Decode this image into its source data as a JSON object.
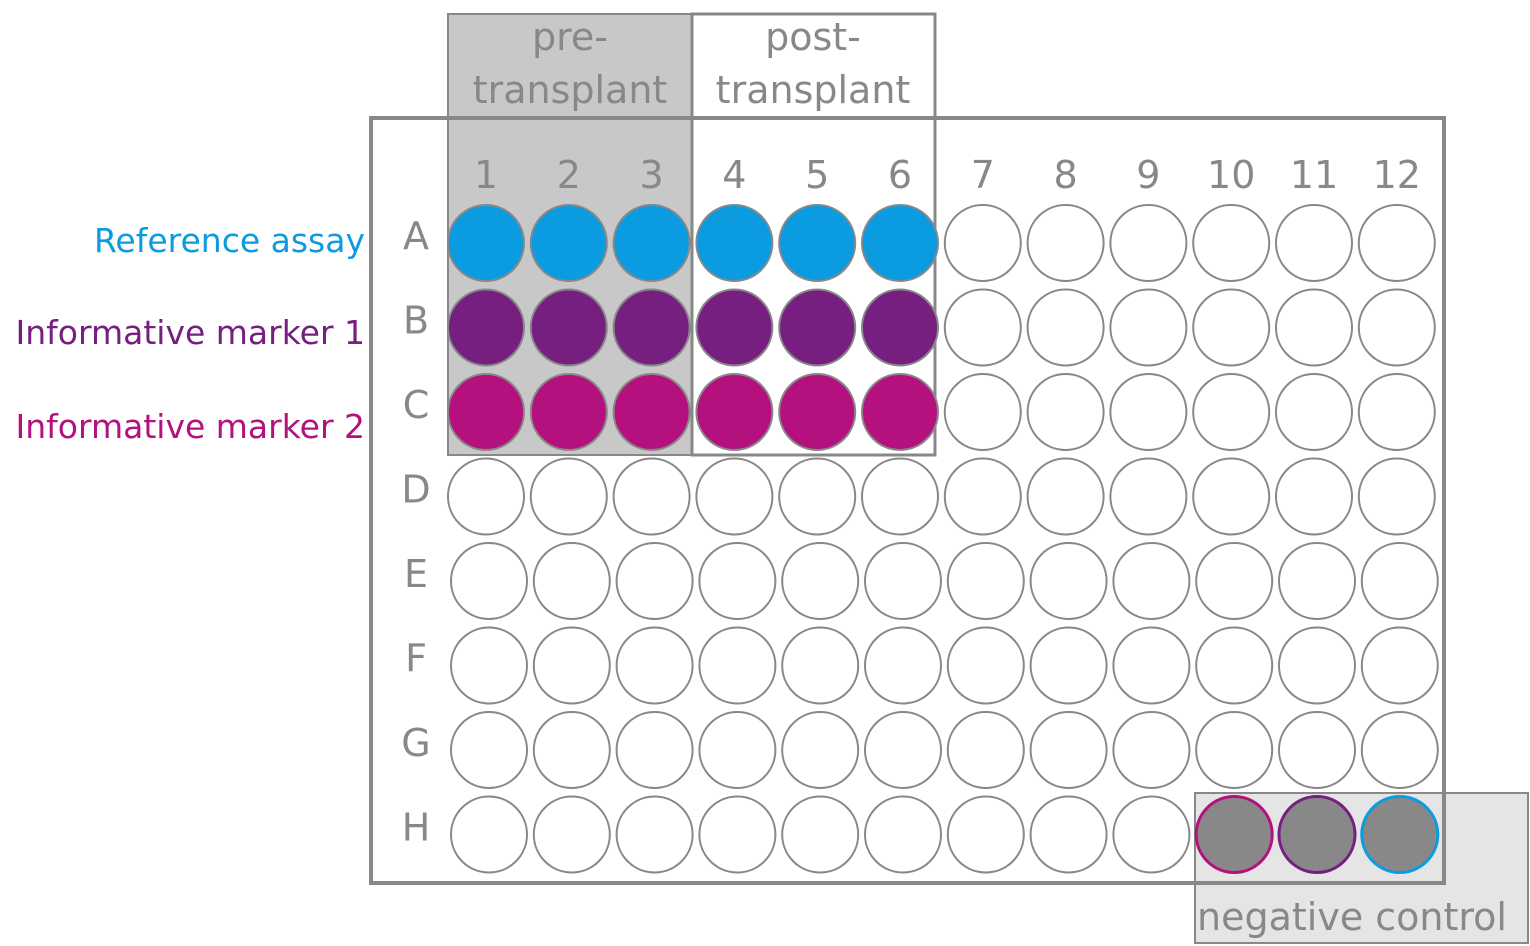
{
  "colors": {
    "frame": "#888888",
    "pre_fill": "#c8c8c8",
    "neg_fill": "#e5e5e5",
    "well_empty": "#ffffff",
    "well_stroke": "#888888",
    "neg_well": "#888888",
    "reference": "#0a9be0",
    "marker1": "#761f80",
    "marker2": "#b4117e"
  },
  "columns": [
    "1",
    "2",
    "3",
    "4",
    "5",
    "6",
    "7",
    "8",
    "9",
    "10",
    "11",
    "12"
  ],
  "rows": [
    "A",
    "B",
    "C",
    "D",
    "E",
    "F",
    "G",
    "H"
  ],
  "groups": {
    "pre": [
      "pre-",
      "transplant"
    ],
    "post": [
      "post-",
      "transplant"
    ]
  },
  "row_labels": [
    {
      "text": "Reference  assay",
      "color": "#0a9be0"
    },
    {
      "text": "Informative marker 1",
      "color": "#761f80"
    },
    {
      "text": "Informative marker 2",
      "color": "#b4117e"
    }
  ],
  "negative_control": "negative control"
}
